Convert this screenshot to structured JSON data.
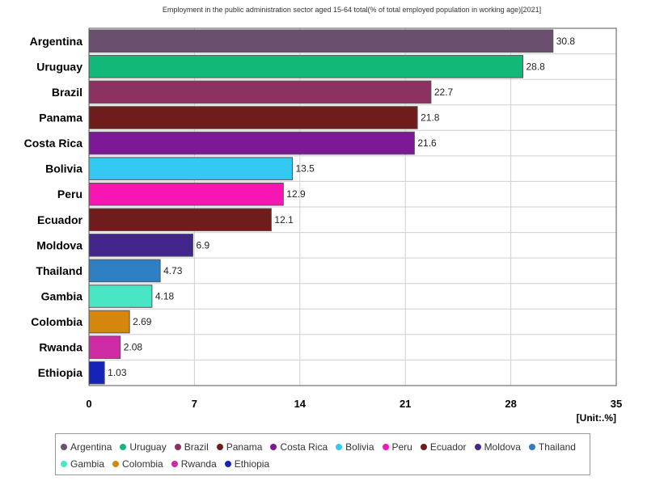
{
  "chart_data": {
    "type": "bar",
    "orientation": "horizontal",
    "title": "Employment in the public administration sector aged 15-64 total(% of total employed population in working age)[2021]",
    "unit_label": "[Unit:.%]",
    "categories": [
      "Argentina",
      "Uruguay",
      "Brazil",
      "Panama",
      "Costa Rica",
      "Bolivia",
      "Peru",
      "Ecuador",
      "Moldova",
      "Thailand",
      "Gambia",
      "Colombia",
      "Rwanda",
      "Ethiopia"
    ],
    "values": [
      30.8,
      28.8,
      22.7,
      21.8,
      21.6,
      13.5,
      12.9,
      12.1,
      6.9,
      4.73,
      4.18,
      2.69,
      2.08,
      1.03
    ],
    "value_labels": [
      "30.8",
      "28.8",
      "22.7",
      "21.8",
      "21.6",
      "13.5",
      "12.9",
      "12.1",
      "6.9",
      "4.73",
      "4.18",
      "2.69",
      "2.08",
      "1.03"
    ],
    "colors": [
      "#6b4f6f",
      "#12b878",
      "#8c3262",
      "#6e1c1c",
      "#7d1896",
      "#33c9f2",
      "#f716b4",
      "#6e1c1c",
      "#43268c",
      "#2e7fc2",
      "#48e6c4",
      "#d4860f",
      "#cf2aa6",
      "#1424b8"
    ],
    "xlim": [
      0,
      35
    ],
    "xticks": [
      0,
      7,
      14,
      21,
      28,
      35
    ],
    "xtick_labels": [
      "0",
      "7",
      "14",
      "21",
      "28",
      "35"
    ],
    "grid": true,
    "legend_position": "bottom"
  }
}
